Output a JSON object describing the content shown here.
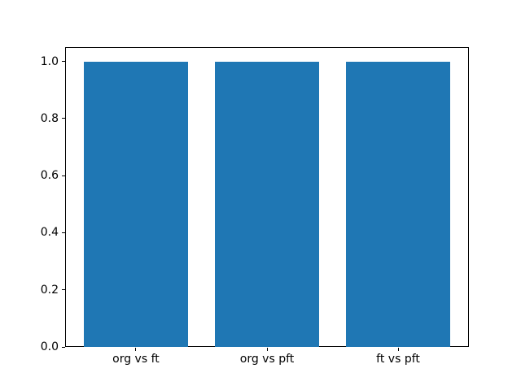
{
  "chart_data": {
    "type": "bar",
    "title": "",
    "xlabel": "",
    "ylabel": "",
    "categories": [
      "org vs ft",
      "org vs pft",
      "ft vs pft"
    ],
    "values": [
      1.0,
      1.0,
      1.0
    ],
    "bar_positions": [
      0,
      1,
      2
    ],
    "bar_width": 0.8,
    "xlim": [
      -0.54,
      2.54
    ],
    "ylim": [
      0,
      1.05
    ],
    "yticks": [
      0.0,
      0.2,
      0.4,
      0.6,
      0.8,
      1.0
    ],
    "ytick_labels": [
      "0.0",
      "0.2",
      "0.4",
      "0.6",
      "0.8",
      "1.0"
    ],
    "grid": false,
    "legend": null
  },
  "colors": {
    "bar": "#1f77b4",
    "spine": "#000000",
    "background": "#ffffff",
    "tick_text": "#000000"
  }
}
